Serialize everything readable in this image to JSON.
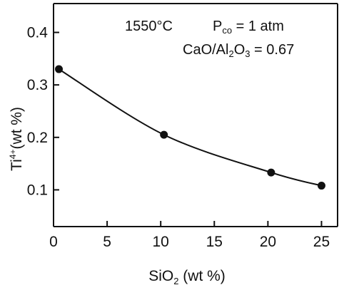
{
  "chart_data": {
    "type": "scatter",
    "title": "",
    "xlabel": {
      "main": "SiO",
      "sub": "2",
      "rest": " (wt %)"
    },
    "ylabel": {
      "main": "Ti",
      "sup": "4+",
      "rest": "(wt %)"
    },
    "xlim": [
      0,
      26.5
    ],
    "ylim": [
      0.03,
      0.455
    ],
    "x_ticks": [
      0,
      5,
      10,
      15,
      20,
      25
    ],
    "x_tick_labels": [
      "0",
      "5",
      "10",
      "15",
      "20",
      "25"
    ],
    "y_ticks": [
      0.1,
      0.2,
      0.3,
      0.4
    ],
    "y_tick_labels": [
      "0.1",
      "0.2",
      "0.3",
      "0.4"
    ],
    "grid": false,
    "series": [
      {
        "points": [
          {
            "x": 0.5,
            "y": 0.33
          },
          {
            "x": 10.3,
            "y": 0.205
          },
          {
            "x": 20.3,
            "y": 0.133
          },
          {
            "x": 25.0,
            "y": 0.108
          }
        ],
        "fit_curve": true,
        "color": "#111111"
      }
    ],
    "annotations": {
      "temperature": "1550°C",
      "pressure": {
        "main": "P",
        "sub": "co",
        "rest": " = 1 atm"
      },
      "ratio": {
        "a": "CaO/Al",
        "sub1": "2",
        "b": "O",
        "sub2": "3",
        "rest": " = 0.67"
      }
    }
  }
}
